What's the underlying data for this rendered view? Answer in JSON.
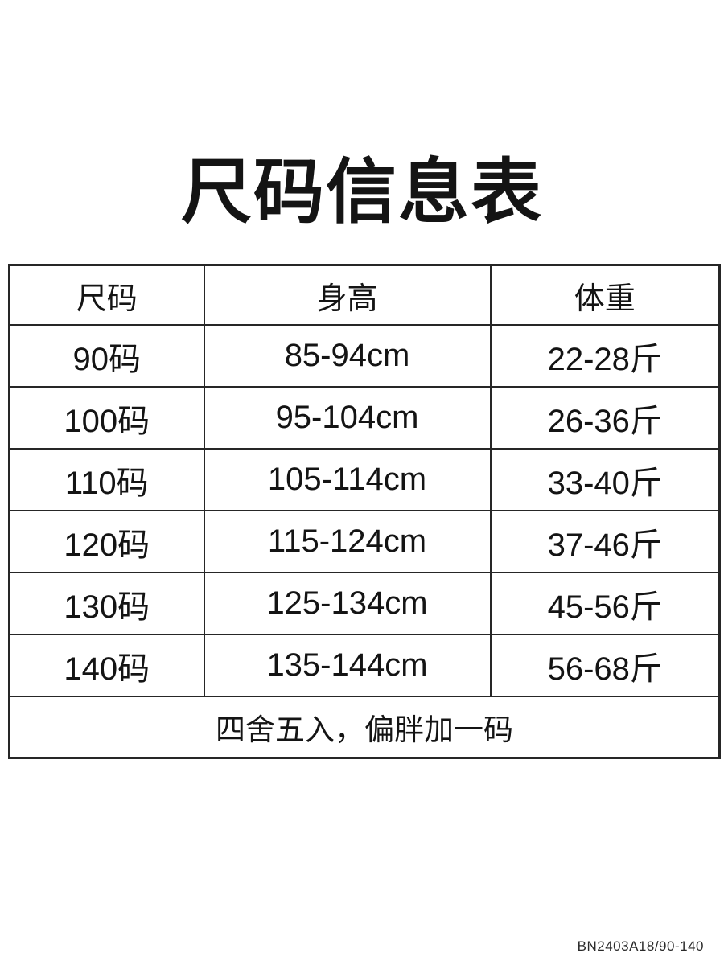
{
  "page": {
    "title": "尺码信息表",
    "product_code": "BN2403A18/90-140"
  },
  "size_table": {
    "columns": [
      "尺码",
      "身高",
      "体重"
    ],
    "rows": [
      [
        "90码",
        "85-94cm",
        "22-28斤"
      ],
      [
        "100码",
        "95-104cm",
        "26-36斤"
      ],
      [
        "110码",
        "105-114cm",
        "33-40斤"
      ],
      [
        "120码",
        "115-124cm",
        "37-46斤"
      ],
      [
        "130码",
        "125-134cm",
        "45-56斤"
      ],
      [
        "140码",
        "135-144cm",
        "56-68斤"
      ]
    ],
    "note": "四舍五入，偏胖加一码"
  },
  "colors": {
    "text": "#141414",
    "border": "#262626",
    "background": "#ffffff"
  },
  "chart_data": {
    "type": "table",
    "title": "尺码信息表",
    "columns": [
      "尺码",
      "身高",
      "体重"
    ],
    "rows": [
      [
        "90码",
        "85-94cm",
        "22-28斤"
      ],
      [
        "100码",
        "95-104cm",
        "26-36斤"
      ],
      [
        "110码",
        "105-114cm",
        "33-40斤"
      ],
      [
        "120码",
        "115-124cm",
        "37-46斤"
      ],
      [
        "130码",
        "125-134cm",
        "45-56斤"
      ],
      [
        "140码",
        "135-144cm",
        "56-68斤"
      ]
    ],
    "footnote": "四舍五入，偏胖加一码"
  }
}
